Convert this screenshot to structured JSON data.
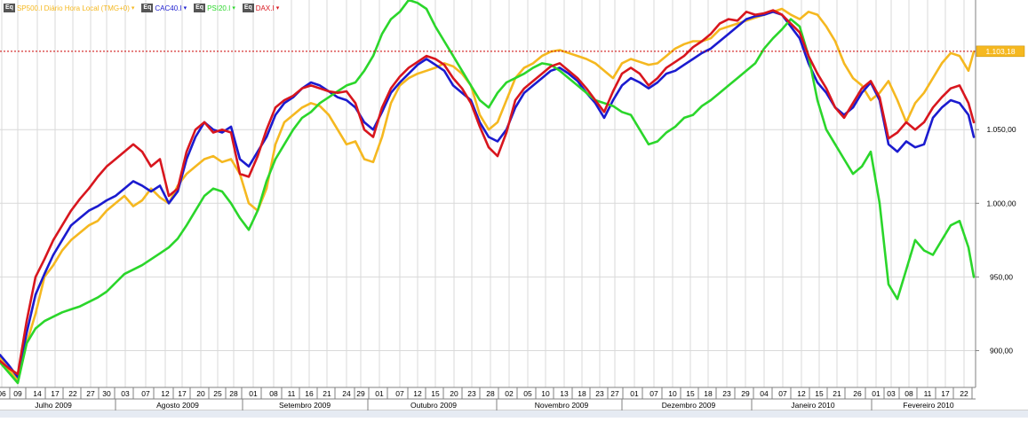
{
  "legend": [
    {
      "box": "Eq",
      "label": "SP500.I Diário Hora Local (TMG+0)",
      "arrow": "▾",
      "color": "#f5b820"
    },
    {
      "box": "Eq",
      "label": "CAC40.I",
      "arrow": "▾",
      "color": "#1b1bcf"
    },
    {
      "box": "Eq",
      "label": "PSI20.I",
      "arrow": "▾",
      "color": "#2bd62b"
    },
    {
      "box": "Eq",
      "label": "DAX.I",
      "arrow": "▾",
      "color": "#d8161e"
    }
  ],
  "current_value_label": "1.103,18",
  "chart_data": {
    "type": "line",
    "xlim": [
      0,
      1098
    ],
    "ylim": [
      875,
      1138
    ],
    "yticks": [
      900,
      950,
      1000,
      1050
    ],
    "ytick_labels": [
      "900,00",
      "950,00",
      "1.000,00",
      "1.050,00"
    ],
    "reference_line": 1103.18,
    "x_day_ticks": [
      {
        "x": 2,
        "label": "06"
      },
      {
        "x": 20,
        "label": "09"
      },
      {
        "x": 42,
        "label": "14"
      },
      {
        "x": 62,
        "label": "17"
      },
      {
        "x": 82,
        "label": "22"
      },
      {
        "x": 102,
        "label": "27"
      },
      {
        "x": 120,
        "label": "30"
      },
      {
        "x": 141,
        "label": "03"
      },
      {
        "x": 164,
        "label": "07"
      },
      {
        "x": 186,
        "label": "12"
      },
      {
        "x": 205,
        "label": "17"
      },
      {
        "x": 226,
        "label": "20"
      },
      {
        "x": 245,
        "label": "25"
      },
      {
        "x": 263,
        "label": "28"
      },
      {
        "x": 285,
        "label": "01"
      },
      {
        "x": 308,
        "label": "08"
      },
      {
        "x": 328,
        "label": "11"
      },
      {
        "x": 348,
        "label": "16"
      },
      {
        "x": 368,
        "label": "21"
      },
      {
        "x": 390,
        "label": "24"
      },
      {
        "x": 406,
        "label": "29"
      },
      {
        "x": 427,
        "label": "01"
      },
      {
        "x": 450,
        "label": "07"
      },
      {
        "x": 470,
        "label": "12"
      },
      {
        "x": 490,
        "label": "15"
      },
      {
        "x": 511,
        "label": "20"
      },
      {
        "x": 531,
        "label": "23"
      },
      {
        "x": 552,
        "label": "28"
      },
      {
        "x": 573,
        "label": "02"
      },
      {
        "x": 594,
        "label": "05"
      },
      {
        "x": 614,
        "label": "10"
      },
      {
        "x": 635,
        "label": "13"
      },
      {
        "x": 655,
        "label": "18"
      },
      {
        "x": 675,
        "label": "23"
      },
      {
        "x": 692,
        "label": "27"
      },
      {
        "x": 714,
        "label": "01"
      },
      {
        "x": 736,
        "label": "07"
      },
      {
        "x": 757,
        "label": "10"
      },
      {
        "x": 777,
        "label": "15"
      },
      {
        "x": 797,
        "label": "18"
      },
      {
        "x": 818,
        "label": "23"
      },
      {
        "x": 839,
        "label": "29"
      },
      {
        "x": 860,
        "label": "04"
      },
      {
        "x": 881,
        "label": "07"
      },
      {
        "x": 902,
        "label": "12"
      },
      {
        "x": 922,
        "label": "15"
      },
      {
        "x": 942,
        "label": "21"
      },
      {
        "x": 965,
        "label": "26"
      },
      {
        "x": 986,
        "label": "01"
      },
      {
        "x": 1003,
        "label": "03"
      },
      {
        "x": 1023,
        "label": "08"
      },
      {
        "x": 1044,
        "label": "11"
      },
      {
        "x": 1064,
        "label": "17"
      },
      {
        "x": 1085,
        "label": "22"
      }
    ],
    "month_labels": [
      {
        "x": 60,
        "label": "Julho 2009"
      },
      {
        "x": 200,
        "label": "Agosto 2009"
      },
      {
        "x": 343,
        "label": "Setembro 2009"
      },
      {
        "x": 488,
        "label": "Outubro 2009"
      },
      {
        "x": 632,
        "label": "Novembro 2009"
      },
      {
        "x": 775,
        "label": "Dezembro 2009"
      },
      {
        "x": 915,
        "label": "Janeiro 2010"
      },
      {
        "x": 1045,
        "label": "Fevereiro 2010"
      }
    ],
    "month_boundaries": [
      130,
      273,
      414,
      559,
      700,
      846,
      981
    ],
    "series": [
      {
        "name": "SP500.I",
        "color": "#f5b820",
        "x": [
          0,
          10,
          20,
          30,
          40,
          50,
          60,
          70,
          80,
          90,
          100,
          110,
          120,
          130,
          140,
          150,
          160,
          170,
          180,
          190,
          200,
          210,
          220,
          230,
          240,
          250,
          260,
          270,
          280,
          290,
          300,
          310,
          320,
          330,
          340,
          350,
          360,
          370,
          380,
          390,
          400,
          410,
          420,
          430,
          440,
          450,
          460,
          470,
          480,
          490,
          500,
          510,
          520,
          530,
          540,
          550,
          560,
          570,
          580,
          590,
          600,
          610,
          620,
          630,
          640,
          650,
          660,
          670,
          680,
          690,
          700,
          710,
          720,
          730,
          740,
          750,
          760,
          770,
          780,
          790,
          800,
          810,
          820,
          830,
          840,
          850,
          860,
          870,
          880,
          890,
          900,
          910,
          920,
          930,
          940,
          950,
          960,
          970,
          980,
          990,
          1000,
          1010,
          1020,
          1030,
          1040,
          1050,
          1060,
          1070,
          1080,
          1090,
          1096
        ],
        "y": [
          895,
          887,
          880,
          905,
          925,
          950,
          958,
          968,
          975,
          980,
          985,
          988,
          995,
          1000,
          1005,
          998,
          1002,
          1010,
          1004,
          1000,
          1012,
          1020,
          1025,
          1030,
          1032,
          1028,
          1030,
          1020,
          1000,
          995,
          1010,
          1040,
          1055,
          1060,
          1065,
          1068,
          1066,
          1060,
          1050,
          1040,
          1042,
          1030,
          1028,
          1045,
          1068,
          1080,
          1085,
          1088,
          1090,
          1092,
          1095,
          1093,
          1088,
          1080,
          1060,
          1050,
          1055,
          1070,
          1085,
          1092,
          1095,
          1100,
          1103,
          1104,
          1102,
          1100,
          1098,
          1095,
          1090,
          1085,
          1095,
          1098,
          1096,
          1094,
          1095,
          1100,
          1105,
          1108,
          1110,
          1110,
          1112,
          1118,
          1120,
          1122,
          1124,
          1126,
          1128,
          1130,
          1132,
          1128,
          1125,
          1130,
          1128,
          1120,
          1110,
          1095,
          1085,
          1080,
          1070,
          1075,
          1083,
          1070,
          1055,
          1068,
          1075,
          1085,
          1095,
          1102,
          1100,
          1090,
          1103
        ]
      },
      {
        "name": "CAC40.I",
        "color": "#1b1bcf",
        "x": [
          0,
          10,
          20,
          30,
          40,
          50,
          60,
          70,
          80,
          90,
          100,
          110,
          120,
          130,
          140,
          150,
          160,
          170,
          180,
          190,
          200,
          210,
          220,
          230,
          240,
          250,
          260,
          270,
          280,
          290,
          300,
          310,
          320,
          330,
          340,
          350,
          360,
          370,
          380,
          390,
          400,
          410,
          420,
          430,
          440,
          450,
          460,
          470,
          480,
          490,
          500,
          510,
          520,
          530,
          540,
          550,
          560,
          570,
          580,
          590,
          600,
          610,
          620,
          630,
          640,
          650,
          660,
          670,
          680,
          690,
          700,
          710,
          720,
          730,
          740,
          750,
          760,
          770,
          780,
          790,
          800,
          810,
          820,
          830,
          840,
          850,
          860,
          870,
          880,
          890,
          900,
          910,
          920,
          930,
          940,
          950,
          960,
          970,
          980,
          990,
          1000,
          1010,
          1020,
          1030,
          1040,
          1050,
          1060,
          1070,
          1080,
          1090,
          1096
        ],
        "y": [
          897,
          890,
          882,
          912,
          938,
          952,
          965,
          975,
          985,
          990,
          995,
          998,
          1002,
          1005,
          1010,
          1015,
          1012,
          1008,
          1012,
          1000,
          1008,
          1030,
          1045,
          1055,
          1050,
          1048,
          1052,
          1030,
          1025,
          1035,
          1045,
          1060,
          1068,
          1072,
          1078,
          1082,
          1080,
          1076,
          1072,
          1070,
          1065,
          1055,
          1050,
          1062,
          1075,
          1082,
          1088,
          1094,
          1098,
          1094,
          1090,
          1080,
          1075,
          1070,
          1055,
          1045,
          1042,
          1050,
          1065,
          1075,
          1080,
          1085,
          1090,
          1092,
          1088,
          1083,
          1075,
          1068,
          1058,
          1070,
          1080,
          1085,
          1082,
          1078,
          1082,
          1088,
          1090,
          1094,
          1098,
          1102,
          1105,
          1110,
          1115,
          1120,
          1125,
          1127,
          1128,
          1130,
          1128,
          1120,
          1112,
          1095,
          1082,
          1075,
          1065,
          1060,
          1065,
          1075,
          1082,
          1070,
          1040,
          1035,
          1042,
          1038,
          1040,
          1058,
          1065,
          1070,
          1068,
          1060,
          1045
        ]
      },
      {
        "name": "PSI20.I",
        "color": "#2bd62b",
        "x": [
          0,
          10,
          20,
          30,
          40,
          50,
          60,
          70,
          80,
          90,
          100,
          110,
          120,
          130,
          140,
          150,
          160,
          170,
          180,
          190,
          200,
          210,
          220,
          230,
          240,
          250,
          260,
          270,
          280,
          290,
          300,
          310,
          320,
          330,
          340,
          350,
          360,
          370,
          380,
          390,
          400,
          410,
          420,
          430,
          440,
          450,
          460,
          470,
          480,
          490,
          500,
          510,
          520,
          530,
          540,
          550,
          560,
          570,
          580,
          590,
          600,
          610,
          620,
          630,
          640,
          650,
          660,
          670,
          680,
          690,
          700,
          710,
          720,
          730,
          740,
          750,
          760,
          770,
          780,
          790,
          800,
          810,
          820,
          830,
          840,
          850,
          860,
          870,
          880,
          890,
          900,
          910,
          920,
          930,
          940,
          950,
          960,
          970,
          980,
          990,
          1000,
          1010,
          1020,
          1030,
          1040,
          1050,
          1060,
          1070,
          1080,
          1090,
          1096
        ],
        "y": [
          892,
          885,
          878,
          905,
          915,
          920,
          923,
          926,
          928,
          930,
          933,
          936,
          940,
          946,
          952,
          955,
          958,
          962,
          966,
          970,
          976,
          985,
          995,
          1005,
          1010,
          1008,
          1000,
          990,
          982,
          995,
          1015,
          1030,
          1040,
          1050,
          1058,
          1062,
          1068,
          1072,
          1076,
          1080,
          1082,
          1090,
          1100,
          1115,
          1125,
          1130,
          1138,
          1136,
          1132,
          1120,
          1110,
          1100,
          1090,
          1080,
          1070,
          1065,
          1075,
          1082,
          1085,
          1088,
          1092,
          1095,
          1094,
          1090,
          1085,
          1080,
          1075,
          1070,
          1068,
          1066,
          1062,
          1060,
          1050,
          1040,
          1042,
          1048,
          1052,
          1058,
          1060,
          1066,
          1070,
          1075,
          1080,
          1085,
          1090,
          1095,
          1105,
          1112,
          1118,
          1125,
          1120,
          1100,
          1070,
          1050,
          1040,
          1030,
          1020,
          1025,
          1035,
          1000,
          945,
          935,
          955,
          975,
          968,
          965,
          975,
          985,
          988,
          970,
          950
        ]
      },
      {
        "name": "DAX.I",
        "color": "#d8161e",
        "x": [
          0,
          10,
          20,
          30,
          40,
          50,
          60,
          70,
          80,
          90,
          100,
          110,
          120,
          130,
          140,
          150,
          160,
          170,
          180,
          190,
          200,
          210,
          220,
          230,
          240,
          250,
          260,
          270,
          280,
          290,
          300,
          310,
          320,
          330,
          340,
          350,
          360,
          370,
          380,
          390,
          400,
          410,
          420,
          430,
          440,
          450,
          460,
          470,
          480,
          490,
          500,
          510,
          520,
          530,
          540,
          550,
          560,
          570,
          580,
          590,
          600,
          610,
          620,
          630,
          640,
          650,
          660,
          670,
          680,
          690,
          700,
          710,
          720,
          730,
          740,
          750,
          760,
          770,
          780,
          790,
          800,
          810,
          820,
          830,
          840,
          850,
          860,
          870,
          880,
          890,
          900,
          910,
          920,
          930,
          940,
          950,
          960,
          970,
          980,
          990,
          1000,
          1010,
          1020,
          1030,
          1040,
          1050,
          1060,
          1070,
          1080,
          1090,
          1096
        ],
        "y": [
          893,
          888,
          884,
          920,
          950,
          962,
          975,
          985,
          995,
          1003,
          1010,
          1018,
          1025,
          1030,
          1035,
          1040,
          1035,
          1025,
          1030,
          1005,
          1010,
          1035,
          1050,
          1055,
          1048,
          1050,
          1048,
          1020,
          1018,
          1032,
          1050,
          1065,
          1070,
          1073,
          1078,
          1080,
          1078,
          1076,
          1075,
          1076,
          1068,
          1050,
          1045,
          1065,
          1078,
          1086,
          1092,
          1096,
          1100,
          1098,
          1094,
          1085,
          1078,
          1068,
          1052,
          1038,
          1032,
          1048,
          1070,
          1078,
          1083,
          1088,
          1093,
          1095,
          1090,
          1085,
          1078,
          1070,
          1062,
          1076,
          1088,
          1092,
          1088,
          1080,
          1085,
          1092,
          1096,
          1100,
          1106,
          1110,
          1115,
          1122,
          1125,
          1124,
          1130,
          1128,
          1129,
          1131,
          1128,
          1122,
          1116,
          1100,
          1088,
          1078,
          1065,
          1058,
          1068,
          1078,
          1083,
          1072,
          1044,
          1048,
          1055,
          1050,
          1055,
          1065,
          1072,
          1078,
          1080,
          1068,
          1055
        ]
      }
    ]
  }
}
